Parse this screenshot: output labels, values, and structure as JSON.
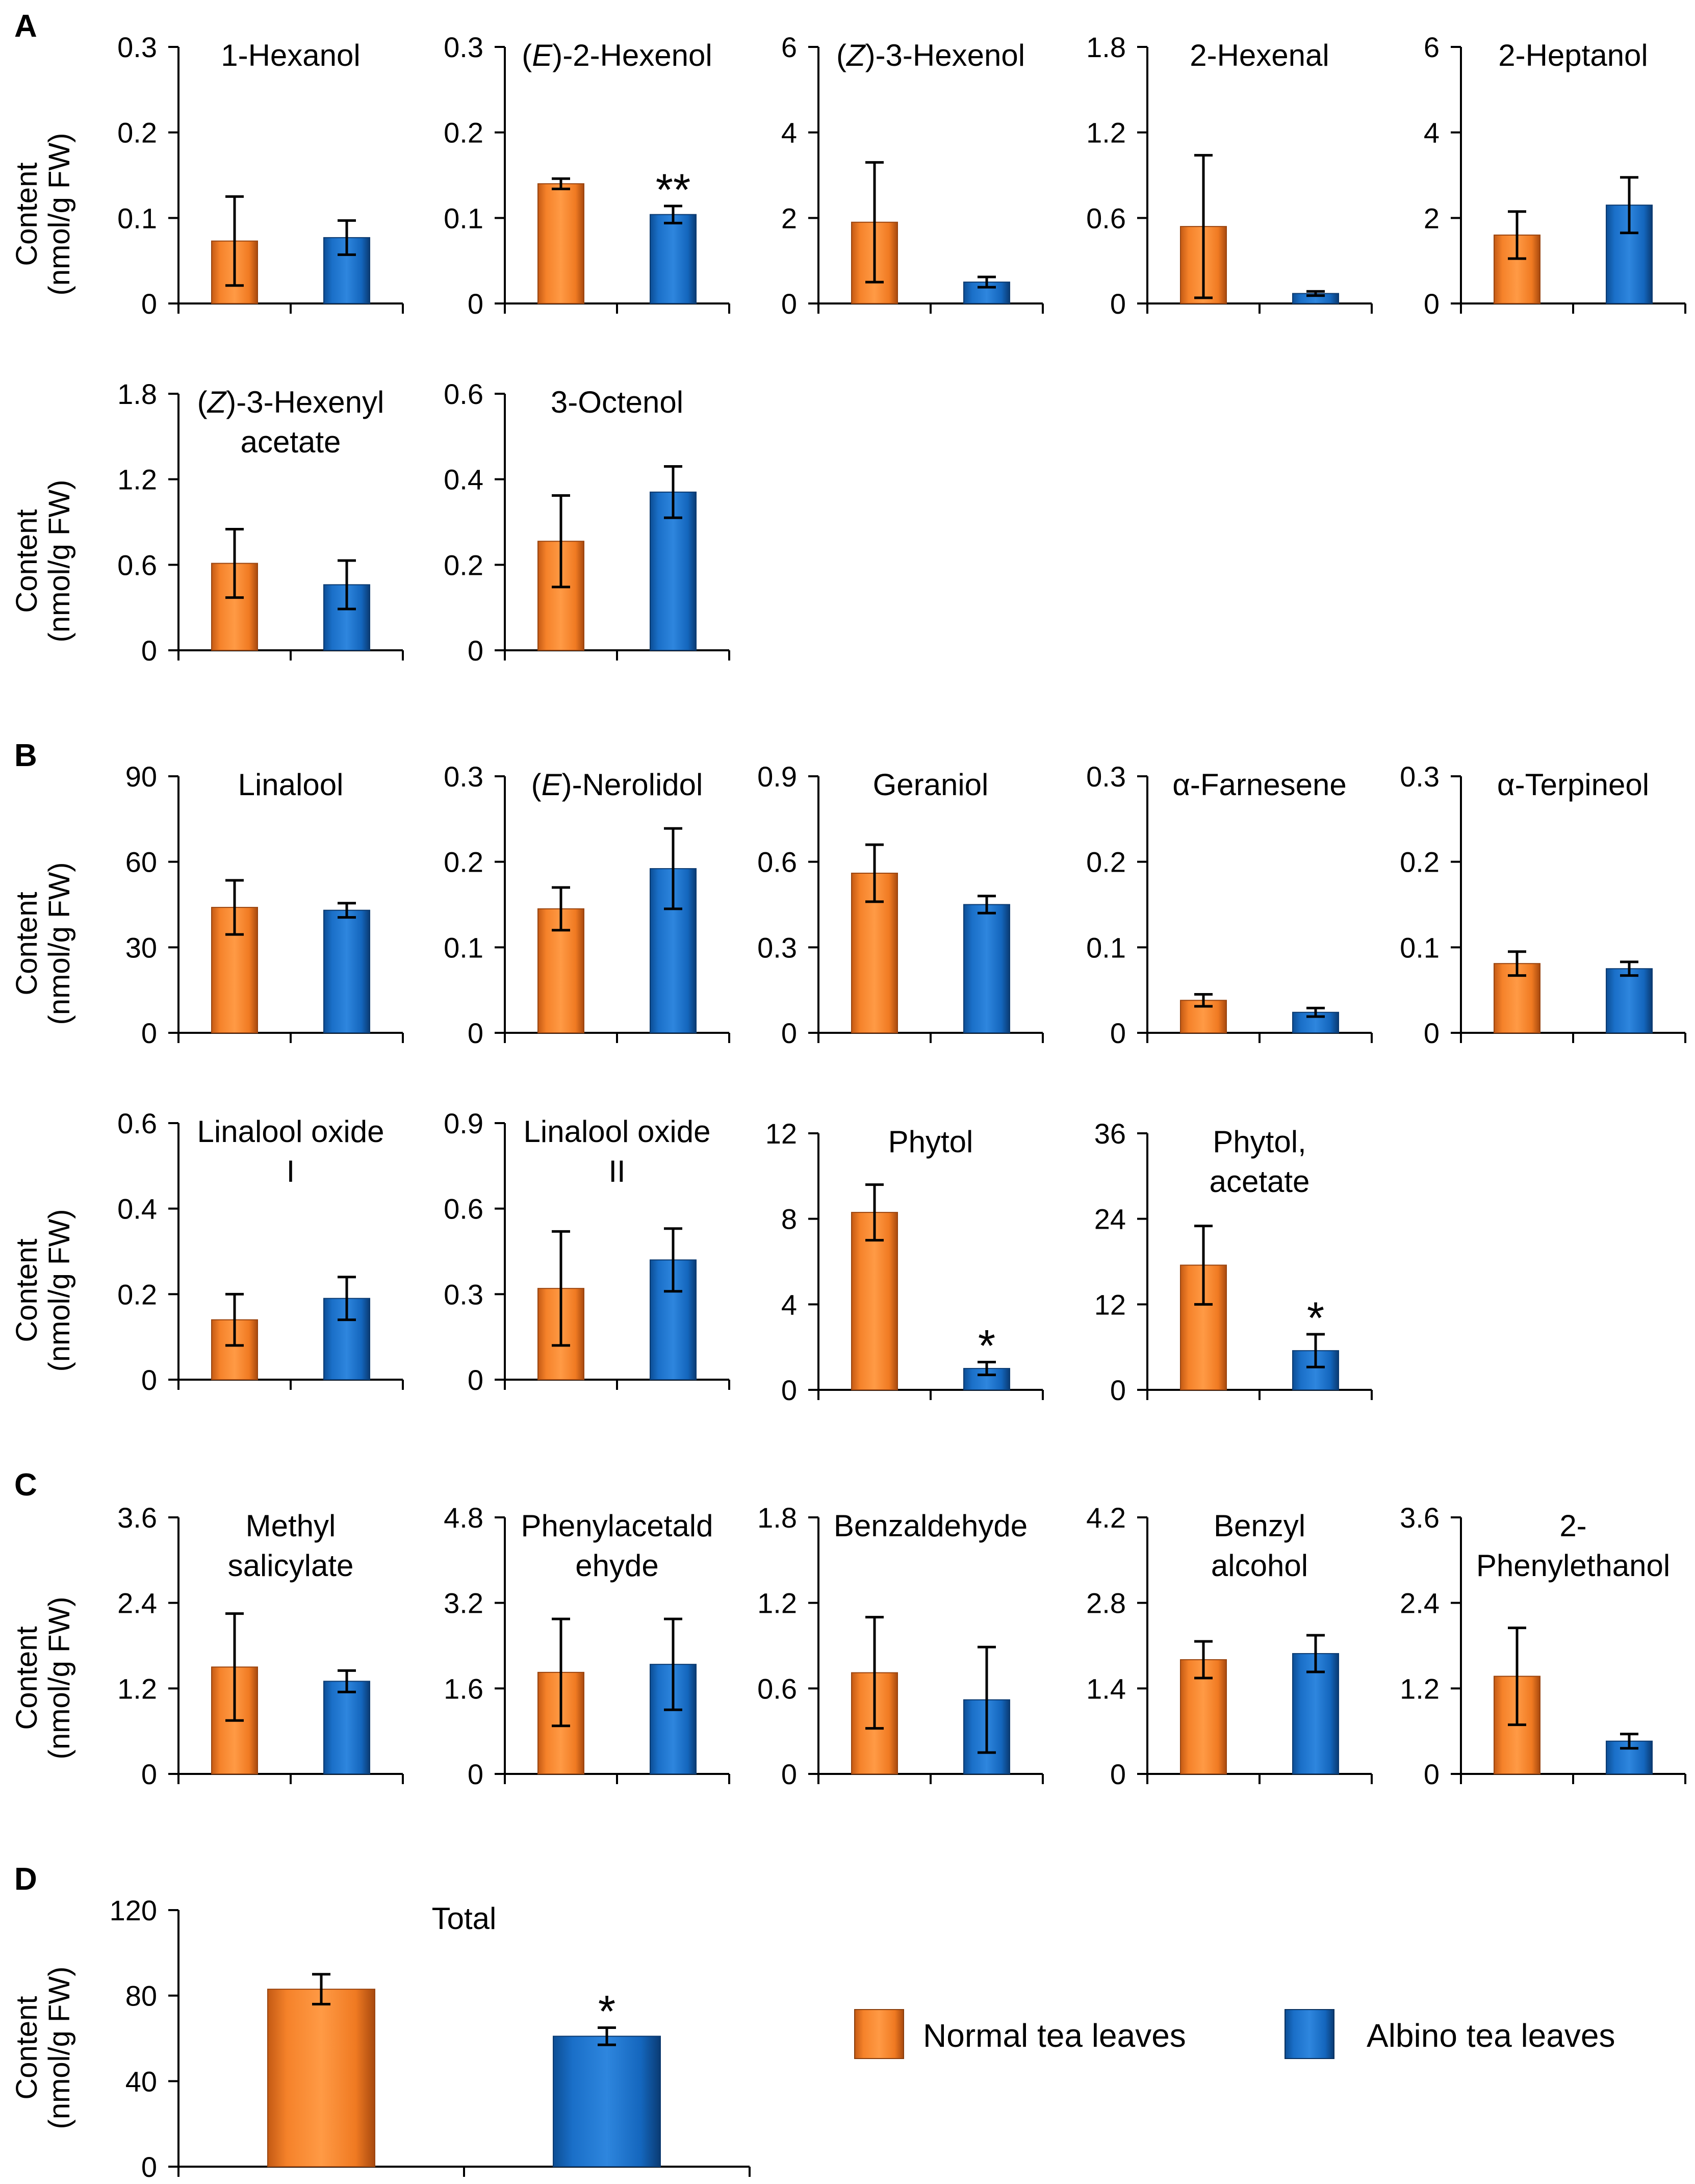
{
  "colors": {
    "normal": "#F5822A",
    "normal_dark": "#9A4510",
    "albino": "#1A6FC8",
    "albino_dark": "#0B3A70",
    "axis": "#000000"
  },
  "ylabel_line1": "Content",
  "ylabel_line2": "(nmol/g FW)",
  "legend": {
    "normal_label": "Normal tea leaves",
    "albino_label": "Albino tea leaves"
  },
  "panels": [
    {
      "letter": "A"
    },
    {
      "letter": "B"
    },
    {
      "letter": "C"
    },
    {
      "letter": "D"
    }
  ],
  "chart_data": [
    {
      "type": "bar",
      "panel": "A",
      "title_parts": [
        {
          "t": "1-Hexanol"
        }
      ],
      "ticks": [
        "0",
        "0.1",
        "0.2",
        "0.3"
      ],
      "ylim": [
        0,
        0.3
      ],
      "categories": [
        "Normal tea leaves",
        "Albino tea leaves"
      ],
      "values": [
        0.073,
        0.077
      ],
      "errors": [
        0.052,
        0.02
      ],
      "sig": [
        "",
        ""
      ]
    },
    {
      "type": "bar",
      "panel": "A",
      "title_parts": [
        {
          "t": "("
        },
        {
          "t": "E",
          "i": true
        },
        {
          "t": ")-2-Hexenol"
        }
      ],
      "ticks": [
        "0",
        "0.1",
        "0.2",
        "0.3"
      ],
      "ylim": [
        0,
        0.3
      ],
      "categories": [
        "Normal tea leaves",
        "Albino tea leaves"
      ],
      "values": [
        0.14,
        0.104
      ],
      "errors": [
        0.006,
        0.01
      ],
      "sig": [
        "",
        "**"
      ]
    },
    {
      "type": "bar",
      "panel": "A",
      "title_parts": [
        {
          "t": "("
        },
        {
          "t": "Z",
          "i": true
        },
        {
          "t": ")-3-Hexenol"
        }
      ],
      "ticks": [
        "0",
        "2",
        "4",
        "6"
      ],
      "ylim": [
        0,
        6
      ],
      "categories": [
        "Normal tea leaves",
        "Albino tea leaves"
      ],
      "values": [
        1.9,
        0.5
      ],
      "errors": [
        1.4,
        0.12
      ],
      "sig": [
        "",
        ""
      ]
    },
    {
      "type": "bar",
      "panel": "A",
      "title_parts": [
        {
          "t": "2-Hexenal"
        }
      ],
      "ticks": [
        "0",
        "0.6",
        "1.2",
        "1.8"
      ],
      "ylim": [
        0,
        1.8
      ],
      "categories": [
        "Normal tea leaves",
        "Albino tea leaves"
      ],
      "values": [
        0.54,
        0.07
      ],
      "errors": [
        0.5,
        0.015
      ],
      "sig": [
        "",
        ""
      ]
    },
    {
      "type": "bar",
      "panel": "A",
      "title_parts": [
        {
          "t": "2-Heptanol"
        }
      ],
      "ticks": [
        "0",
        "2",
        "4",
        "6"
      ],
      "ylim": [
        0,
        6
      ],
      "categories": [
        "Normal tea leaves",
        "Albino tea leaves"
      ],
      "values": [
        1.6,
        2.3
      ],
      "errors": [
        0.55,
        0.65
      ],
      "sig": [
        "",
        ""
      ]
    },
    {
      "type": "bar",
      "panel": "A",
      "title_parts": [
        {
          "t": "("
        },
        {
          "t": "Z",
          "i": true
        },
        {
          "t": ")-3-Hexenyl"
        }
      ],
      "title2": "acetate",
      "ticks": [
        "0",
        "0.6",
        "1.2",
        "1.8"
      ],
      "ylim": [
        0,
        1.8
      ],
      "categories": [
        "Normal tea leaves",
        "Albino tea leaves"
      ],
      "values": [
        0.61,
        0.46
      ],
      "errors": [
        0.24,
        0.17
      ],
      "sig": [
        "",
        ""
      ]
    },
    {
      "type": "bar",
      "panel": "A",
      "title_parts": [
        {
          "t": "3-Octenol"
        }
      ],
      "ticks": [
        "0",
        "0.2",
        "0.4",
        "0.6"
      ],
      "ylim": [
        0,
        0.6
      ],
      "categories": [
        "Normal tea leaves",
        "Albino tea leaves"
      ],
      "values": [
        0.255,
        0.37
      ],
      "errors": [
        0.107,
        0.06
      ],
      "sig": [
        "",
        ""
      ]
    },
    {
      "type": "bar",
      "panel": "B",
      "title_parts": [
        {
          "t": "Linalool"
        }
      ],
      "ticks": [
        "0",
        "30",
        "60",
        "90"
      ],
      "ylim": [
        0,
        90
      ],
      "categories": [
        "Normal tea leaves",
        "Albino tea leaves"
      ],
      "values": [
        44,
        43
      ],
      "errors": [
        9.5,
        2.5
      ],
      "sig": [
        "",
        ""
      ]
    },
    {
      "type": "bar",
      "panel": "B",
      "title_parts": [
        {
          "t": "("
        },
        {
          "t": "E",
          "i": true
        },
        {
          "t": ")-Nerolidol"
        }
      ],
      "ticks": [
        "0",
        "0.1",
        "0.2",
        "0.3"
      ],
      "ylim": [
        0,
        0.3
      ],
      "categories": [
        "Normal tea leaves",
        "Albino tea leaves"
      ],
      "values": [
        0.145,
        0.192
      ],
      "errors": [
        0.025,
        0.047
      ],
      "sig": [
        "",
        ""
      ]
    },
    {
      "type": "bar",
      "panel": "B",
      "title_parts": [
        {
          "t": "Geraniol"
        }
      ],
      "ticks": [
        "0",
        "0.3",
        "0.6",
        "0.9"
      ],
      "ylim": [
        0,
        0.9
      ],
      "categories": [
        "Normal tea leaves",
        "Albino tea leaves"
      ],
      "values": [
        0.56,
        0.45
      ],
      "errors": [
        0.1,
        0.03
      ],
      "sig": [
        "",
        ""
      ]
    },
    {
      "type": "bar",
      "panel": "B",
      "title_parts": [
        {
          "t": "α-Farnesene"
        }
      ],
      "ticks": [
        "0",
        "0.1",
        "0.2",
        "0.3"
      ],
      "ylim": [
        0,
        0.3
      ],
      "categories": [
        "Normal tea leaves",
        "Albino tea leaves"
      ],
      "values": [
        0.038,
        0.024
      ],
      "errors": [
        0.007,
        0.005
      ],
      "sig": [
        "",
        ""
      ]
    },
    {
      "type": "bar",
      "panel": "B",
      "title_parts": [
        {
          "t": "α-Terpineol"
        }
      ],
      "ticks": [
        "0",
        "0.1",
        "0.2",
        "0.3"
      ],
      "ylim": [
        0,
        0.3
      ],
      "categories": [
        "Normal tea leaves",
        "Albino tea leaves"
      ],
      "values": [
        0.081,
        0.075
      ],
      "errors": [
        0.014,
        0.008
      ],
      "sig": [
        "",
        ""
      ]
    },
    {
      "type": "bar",
      "panel": "B",
      "title_parts": [
        {
          "t": "Linalool oxide"
        }
      ],
      "title2": "I",
      "ticks": [
        "0",
        "0.2",
        "0.4",
        "0.6"
      ],
      "ylim": [
        0,
        0.6
      ],
      "categories": [
        "Normal tea leaves",
        "Albino tea leaves"
      ],
      "values": [
        0.14,
        0.19
      ],
      "errors": [
        0.06,
        0.05
      ],
      "sig": [
        "",
        ""
      ]
    },
    {
      "type": "bar",
      "panel": "B",
      "title_parts": [
        {
          "t": "Linalool oxide"
        }
      ],
      "title2": "II",
      "ticks": [
        "0",
        "0.3",
        "0.6",
        "0.9"
      ],
      "ylim": [
        0,
        0.9
      ],
      "categories": [
        "Normal tea leaves",
        "Albino tea leaves"
      ],
      "values": [
        0.32,
        0.42
      ],
      "errors": [
        0.2,
        0.11
      ],
      "sig": [
        "",
        ""
      ]
    },
    {
      "type": "bar",
      "panel": "B",
      "title_parts": [
        {
          "t": "Phytol"
        }
      ],
      "ticks": [
        "0",
        "4",
        "8",
        "12"
      ],
      "ylim": [
        0,
        12
      ],
      "categories": [
        "Normal tea leaves",
        "Albino tea leaves"
      ],
      "values": [
        8.3,
        1.0
      ],
      "errors": [
        1.3,
        0.3
      ],
      "sig": [
        "",
        "*"
      ]
    },
    {
      "type": "bar",
      "panel": "B",
      "title_parts": [
        {
          "t": "Phytol,"
        }
      ],
      "title2": "acetate",
      "ticks": [
        "0",
        "12",
        "24",
        "36"
      ],
      "ylim": [
        0,
        36
      ],
      "categories": [
        "Normal tea leaves",
        "Albino tea leaves"
      ],
      "values": [
        17.5,
        5.5
      ],
      "errors": [
        5.5,
        2.3
      ],
      "sig": [
        "",
        "*"
      ]
    },
    {
      "type": "bar",
      "panel": "C",
      "title_parts": [
        {
          "t": "Methyl"
        }
      ],
      "title2": "salicylate",
      "ticks": [
        "0",
        "1.2",
        "2.4",
        "3.6"
      ],
      "ylim": [
        0,
        3.6
      ],
      "categories": [
        "Normal tea leaves",
        "Albino tea leaves"
      ],
      "values": [
        1.5,
        1.3
      ],
      "errors": [
        0.75,
        0.15
      ],
      "sig": [
        "",
        ""
      ]
    },
    {
      "type": "bar",
      "panel": "C",
      "title_parts": [
        {
          "t": "Phenylacetald"
        }
      ],
      "title2": "ehyde",
      "ticks": [
        "0",
        "1.6",
        "3.2",
        "4.8"
      ],
      "ylim": [
        0,
        4.8
      ],
      "categories": [
        "Normal tea leaves",
        "Albino tea leaves"
      ],
      "values": [
        1.9,
        2.05
      ],
      "errors": [
        1.0,
        0.85
      ],
      "sig": [
        "",
        ""
      ]
    },
    {
      "type": "bar",
      "panel": "C",
      "title_parts": [
        {
          "t": "Benzaldehyde"
        }
      ],
      "ticks": [
        "0",
        "0.6",
        "1.2",
        "1.8"
      ],
      "ylim": [
        0,
        1.8
      ],
      "categories": [
        "Normal tea leaves",
        "Albino tea leaves"
      ],
      "values": [
        0.71,
        0.52
      ],
      "errors": [
        0.39,
        0.37
      ],
      "sig": [
        "",
        ""
      ]
    },
    {
      "type": "bar",
      "panel": "C",
      "title_parts": [
        {
          "t": "Benzyl"
        }
      ],
      "title2": "alcohol",
      "ticks": [
        "0",
        "1.4",
        "2.8",
        "4.2"
      ],
      "ylim": [
        0,
        4.2
      ],
      "categories": [
        "Normal tea leaves",
        "Albino tea leaves"
      ],
      "values": [
        1.87,
        1.97
      ],
      "errors": [
        0.3,
        0.3
      ],
      "sig": [
        "",
        ""
      ]
    },
    {
      "type": "bar",
      "panel": "C",
      "title_parts": [
        {
          "t": "2-"
        }
      ],
      "title2": "Phenylethanol",
      "ticks": [
        "0",
        "1.2",
        "2.4",
        "3.6"
      ],
      "ylim": [
        0,
        3.6
      ],
      "categories": [
        "Normal tea leaves",
        "Albino tea leaves"
      ],
      "values": [
        1.37,
        0.46
      ],
      "errors": [
        0.68,
        0.1
      ],
      "sig": [
        "",
        ""
      ]
    },
    {
      "type": "bar",
      "panel": "D",
      "title_parts": [
        {
          "t": "Total"
        }
      ],
      "ticks": [
        "0",
        "40",
        "80",
        "120"
      ],
      "ylim": [
        0,
        120
      ],
      "categories": [
        "Normal tea leaves",
        "Albino tea leaves"
      ],
      "values": [
        83,
        61
      ],
      "errors": [
        7,
        4
      ],
      "sig": [
        "",
        "*"
      ]
    }
  ]
}
